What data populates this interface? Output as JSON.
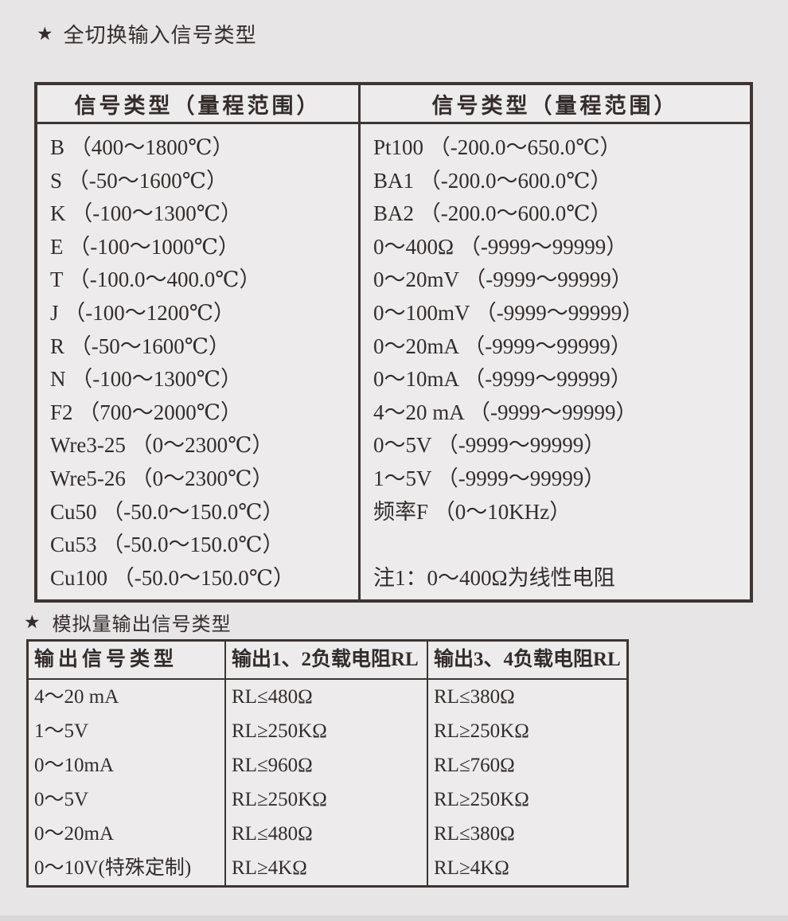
{
  "page": {
    "background_color": "#e8e5e6",
    "text_color": "#332c2c",
    "border_color": "#3c3534"
  },
  "section_input": {
    "star": "★",
    "title": "全切换输入信号类型",
    "table": {
      "header_left": "信号类型（量程范围）",
      "header_right": "信号类型（量程范围）",
      "left_rows": [
        "B （400～1800℃）",
        "S （-50～1600℃）",
        "K （-100～1300℃）",
        "E （-100～1000℃）",
        "T （-100.0～400.0℃）",
        "J （-100～1200℃）",
        "R （-50～1600℃）",
        "N （-100～1300℃）",
        "F2 （700～2000℃）",
        "Wre3-25 （0～2300℃）",
        "Wre5-26 （0～2300℃）",
        "Cu50 （-50.0～150.0℃）",
        "Cu53 （-50.0～150.0℃）",
        "Cu100 （-50.0～150.0℃）"
      ],
      "right_rows": [
        "Pt100 （-200.0～650.0℃）",
        "BA1 （-200.0～600.0℃）",
        "BA2 （-200.0～600.0℃）",
        "0～400Ω （-9999～99999）",
        "0～20mV （-9999～99999）",
        "0～100mV （-9999～99999）",
        "0～20mA （-9999～99999）",
        "0～10mA （-9999～99999）",
        "4～20 mA （-9999～99999）",
        "0～5V （-9999～99999）",
        "1～5V （-9999～99999）",
        "频率F （0～10KHz）"
      ],
      "note": "注1：0～400Ω为线性电阻"
    }
  },
  "section_output": {
    "star": "★",
    "title": "模拟量输出信号类型",
    "table": {
      "headers": [
        "输出信号类型",
        "输出1、2负载电阻RL",
        "输出3、4负载电阻RL"
      ],
      "rows": [
        {
          "type": "4～20 mA",
          "rl12": "RL≤480Ω",
          "rl34": "RL≤380Ω"
        },
        {
          "type": "1～5V",
          "rl12": "RL≥250KΩ",
          "rl34": "RL≥250KΩ"
        },
        {
          "type": "0～10mA",
          "rl12": "RL≤960Ω",
          "rl34": "RL≤760Ω"
        },
        {
          "type": "0～5V",
          "rl12": "RL≥250KΩ",
          "rl34": "RL≥250KΩ"
        },
        {
          "type": "0～20mA",
          "rl12": "RL≤480Ω",
          "rl34": "RL≤380Ω"
        },
        {
          "type": "0～10V(特殊定制)",
          "rl12": "RL≥4KΩ",
          "rl34": "RL≥4KΩ"
        }
      ]
    }
  }
}
